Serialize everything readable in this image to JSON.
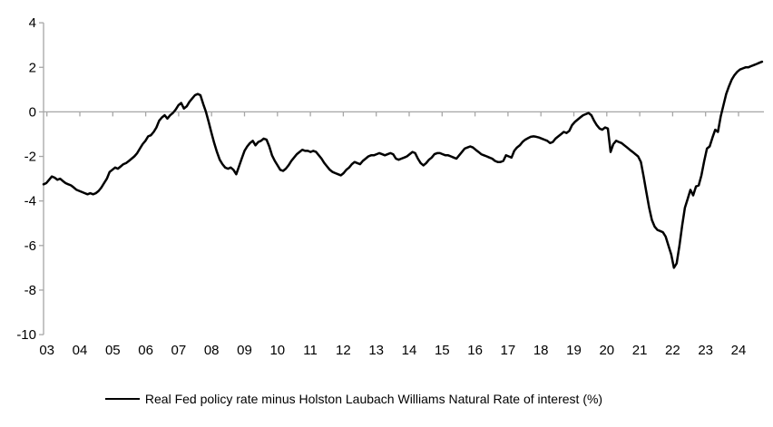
{
  "figure": {
    "background_color": "#ffffff",
    "line_color": "#000000",
    "axis_color": "#a6a6a6",
    "text_color": "#000000"
  },
  "legend": {
    "label": "Real Fed policy rate minus Holston Laubach Williams Natural Rate of interest (%)"
  },
  "chart_data": {
    "type": "line",
    "title": "",
    "xlabel": "",
    "ylabel": "",
    "series_name": "Real Fed policy rate minus Holston Laubach Williams Natural Rate of interest (%)",
    "x_frequency": "monthly",
    "x_start": "2003-01",
    "x_end": "2024-10",
    "x_tick_labels": [
      "03",
      "04",
      "05",
      "06",
      "07",
      "08",
      "09",
      "10",
      "11",
      "12",
      "13",
      "14",
      "15",
      "16",
      "17",
      "18",
      "19",
      "20",
      "21",
      "22",
      "23",
      "24"
    ],
    "y_tick_labels": [
      4,
      2,
      0,
      -2,
      -4,
      -6,
      -8,
      -10
    ],
    "ylim": [
      -10,
      4
    ],
    "grid": "zero-line-only",
    "legend_position": "bottom-center",
    "values": [
      -3.25,
      -3.2,
      -3.05,
      -2.9,
      -2.95,
      -3.05,
      -3.0,
      -3.1,
      -3.2,
      -3.25,
      -3.3,
      -3.4,
      -3.5,
      -3.55,
      -3.6,
      -3.65,
      -3.7,
      -3.65,
      -3.7,
      -3.65,
      -3.55,
      -3.4,
      -3.2,
      -3.0,
      -2.7,
      -2.6,
      -2.5,
      -2.55,
      -2.45,
      -2.35,
      -2.3,
      -2.2,
      -2.1,
      -2.0,
      -1.85,
      -1.65,
      -1.45,
      -1.3,
      -1.1,
      -1.05,
      -0.9,
      -0.7,
      -0.4,
      -0.25,
      -0.15,
      -0.3,
      -0.15,
      -0.05,
      0.1,
      0.3,
      0.4,
      0.15,
      0.25,
      0.45,
      0.6,
      0.75,
      0.8,
      0.75,
      0.35,
      0.0,
      -0.45,
      -0.95,
      -1.4,
      -1.8,
      -2.15,
      -2.35,
      -2.5,
      -2.55,
      -2.5,
      -2.6,
      -2.8,
      -2.45,
      -2.1,
      -1.75,
      -1.55,
      -1.4,
      -1.3,
      -1.5,
      -1.35,
      -1.3,
      -1.2,
      -1.25,
      -1.55,
      -1.95,
      -2.2,
      -2.4,
      -2.6,
      -2.65,
      -2.55,
      -2.4,
      -2.2,
      -2.05,
      -1.9,
      -1.8,
      -1.7,
      -1.75,
      -1.75,
      -1.8,
      -1.75,
      -1.8,
      -1.95,
      -2.1,
      -2.3,
      -2.45,
      -2.6,
      -2.7,
      -2.75,
      -2.8,
      -2.85,
      -2.75,
      -2.6,
      -2.5,
      -2.35,
      -2.25,
      -2.3,
      -2.35,
      -2.2,
      -2.1,
      -2.0,
      -1.95,
      -1.95,
      -1.9,
      -1.85,
      -1.9,
      -1.95,
      -1.9,
      -1.85,
      -1.9,
      -2.1,
      -2.15,
      -2.1,
      -2.05,
      -2.0,
      -1.9,
      -1.8,
      -1.85,
      -2.1,
      -2.3,
      -2.4,
      -2.3,
      -2.15,
      -2.05,
      -1.9,
      -1.85,
      -1.85,
      -1.9,
      -1.95,
      -1.95,
      -2.0,
      -2.05,
      -2.1,
      -1.95,
      -1.8,
      -1.65,
      -1.6,
      -1.55,
      -1.6,
      -1.7,
      -1.8,
      -1.9,
      -1.95,
      -2.0,
      -2.05,
      -2.1,
      -2.2,
      -2.25,
      -2.25,
      -2.2,
      -1.95,
      -2.0,
      -2.05,
      -1.75,
      -1.6,
      -1.5,
      -1.35,
      -1.25,
      -1.18,
      -1.12,
      -1.1,
      -1.12,
      -1.15,
      -1.2,
      -1.25,
      -1.3,
      -1.4,
      -1.35,
      -1.2,
      -1.1,
      -1.0,
      -0.9,
      -0.95,
      -0.85,
      -0.6,
      -0.45,
      -0.35,
      -0.25,
      -0.15,
      -0.1,
      -0.05,
      -0.15,
      -0.4,
      -0.6,
      -0.75,
      -0.8,
      -0.7,
      -0.75,
      -1.8,
      -1.45,
      -1.3,
      -1.35,
      -1.4,
      -1.5,
      -1.6,
      -1.7,
      -1.8,
      -1.9,
      -2.0,
      -2.25,
      -2.9,
      -3.6,
      -4.3,
      -4.85,
      -5.15,
      -5.3,
      -5.35,
      -5.4,
      -5.6,
      -6.0,
      -6.4,
      -7.0,
      -6.8,
      -6.0,
      -5.1,
      -4.3,
      -3.9,
      -3.5,
      -3.75,
      -3.35,
      -3.3,
      -2.85,
      -2.2,
      -1.65,
      -1.55,
      -1.15,
      -0.8,
      -0.9,
      -0.2,
      0.3,
      0.8,
      1.15,
      1.45,
      1.65,
      1.8,
      1.9,
      1.95,
      2.0,
      2.0,
      2.05,
      2.1,
      2.15,
      2.2,
      2.25
    ]
  }
}
